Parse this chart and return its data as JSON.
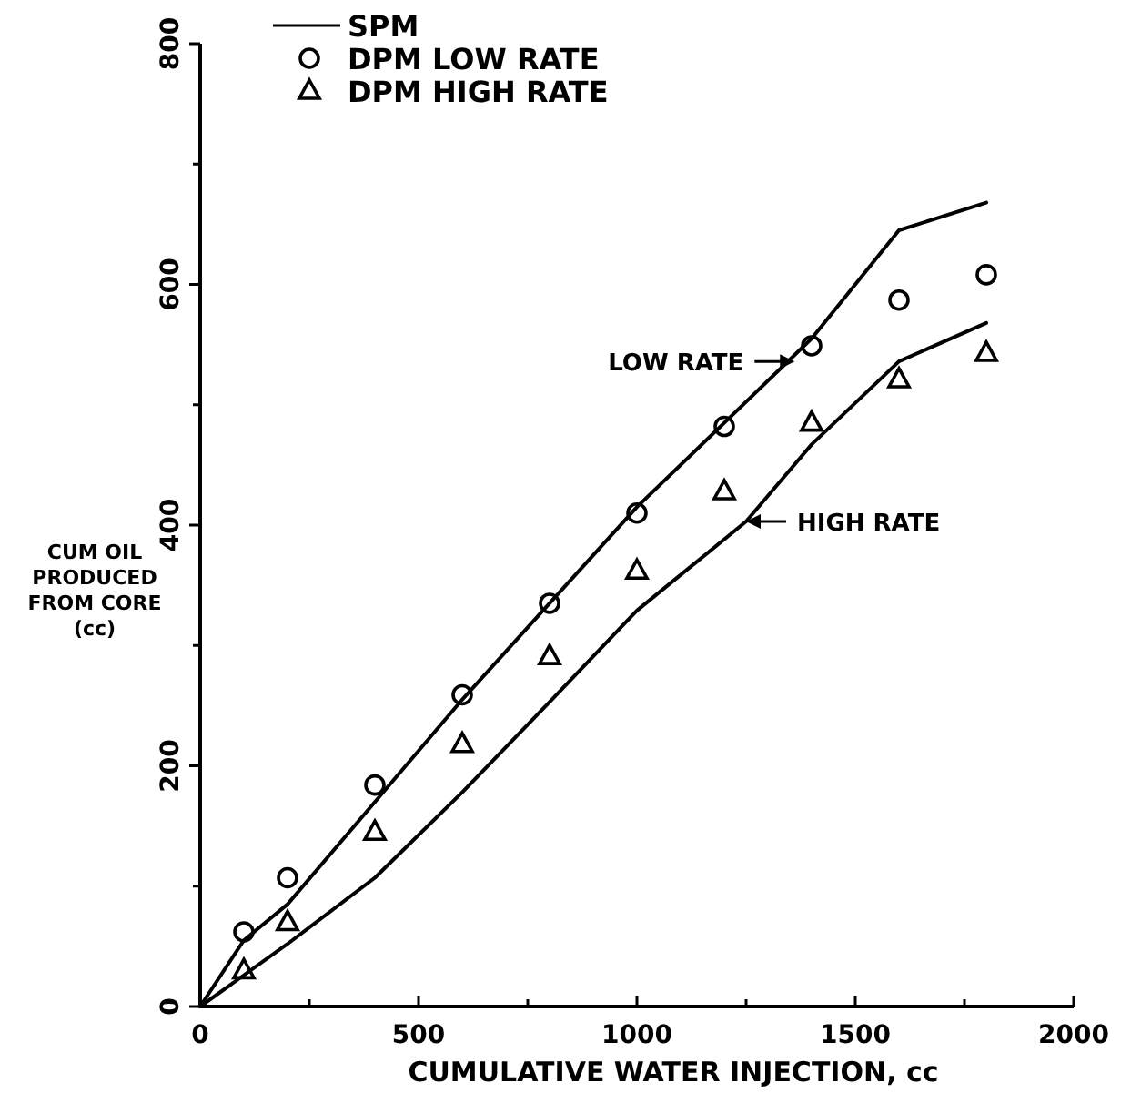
{
  "chart_data": {
    "type": "line",
    "xlabel": "CUMULATIVE WATER INJECTION,  cc",
    "ylabel": "CUM OIL\nPRODUCED\nFROM CORE\n(cc)",
    "xlim": [
      0,
      2000
    ],
    "ylim": [
      0,
      800
    ],
    "xticks": [
      0,
      {
        "value": 250,
        "label": null
      },
      500,
      {
        "value": 750,
        "label": null
      },
      1000,
      {
        "value": 1250,
        "label": null
      },
      1500,
      {
        "value": 1750,
        "label": null
      },
      2000
    ],
    "yticks": [
      0,
      {
        "value": 100,
        "label": null
      },
      200,
      {
        "value": 300,
        "label": null
      },
      400,
      {
        "value": 500,
        "label": null
      },
      600,
      {
        "value": 700,
        "label": null
      },
      800
    ],
    "grid": false,
    "legend": "top",
    "series": [
      {
        "name": "SPM",
        "marker": "none",
        "line_style": "solid",
        "color": "#000000",
        "x": [
          0,
          100,
          200,
          400,
          600,
          800,
          1000,
          1200,
          1400,
          1600,
          1800
        ],
        "values": [
          0,
          55,
          85,
          170,
          255,
          335,
          415,
          485,
          555,
          645,
          668
        ]
      },
      {
        "marker": "none",
        "line_style": "solid",
        "color": "#000000",
        "x": [
          0,
          200,
          400,
          600,
          800,
          1000,
          1250,
          1400,
          1600,
          1800
        ],
        "values": [
          0,
          52,
          107,
          178,
          253,
          329,
          403,
          467,
          536,
          568
        ]
      },
      {
        "name": "DPM LOW RATE",
        "type": "scatter",
        "marker": "circle",
        "color": "#000000",
        "x": [
          100,
          200,
          400,
          600,
          800,
          1000,
          1200,
          1400,
          1600,
          1800
        ],
        "values": [
          62,
          107,
          184,
          259,
          335,
          410,
          482,
          549,
          587,
          608
        ]
      },
      {
        "name": "DPM HIGH RATE",
        "type": "scatter",
        "marker": "triangle",
        "color": "#000000",
        "x": [
          100,
          200,
          400,
          600,
          800,
          1000,
          1200,
          1400,
          1600,
          1800
        ],
        "values": [
          30,
          70,
          145,
          218,
          291,
          362,
          428,
          485,
          521,
          543
        ]
      }
    ],
    "annotations": [
      {
        "text": "LOW RATE",
        "x": 1361,
        "y": 536
      },
      {
        "text": "HIGH RATE",
        "x": 1250,
        "y": 403
      }
    ]
  }
}
